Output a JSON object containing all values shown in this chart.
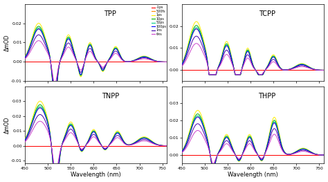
{
  "panels": [
    "TPP",
    "TCPP",
    "TNPP",
    "THPP"
  ],
  "legend_labels": [
    "-1ps",
    "500fs",
    "1ps",
    "10ps",
    "50ps",
    "100ps",
    "1ns",
    "6ns"
  ],
  "legend_colors": [
    "#ff0000",
    "#ff8800",
    "#ffee00",
    "#00aa00",
    "#00cc88",
    "#0000ff",
    "#4400aa",
    "#cc44cc"
  ],
  "xlabel": "Wavelength (nm)",
  "ylabel": "ΔmOD",
  "background_color": "#ffffff",
  "ylims": {
    "TPP": [
      -0.01,
      0.03
    ],
    "TCPP": [
      -0.005,
      0.03
    ],
    "TNPP": [
      -0.012,
      0.04
    ],
    "THPP": [
      -0.005,
      0.04
    ]
  },
  "yticks": {
    "TPP": [
      -0.01,
      0.0,
      0.01,
      0.02
    ],
    "TCPP": [
      0.0,
      0.01,
      0.02
    ],
    "TNPP": [
      -0.01,
      0.0,
      0.01,
      0.02,
      0.03
    ],
    "THPP": [
      0.0,
      0.01,
      0.02,
      0.03
    ]
  }
}
